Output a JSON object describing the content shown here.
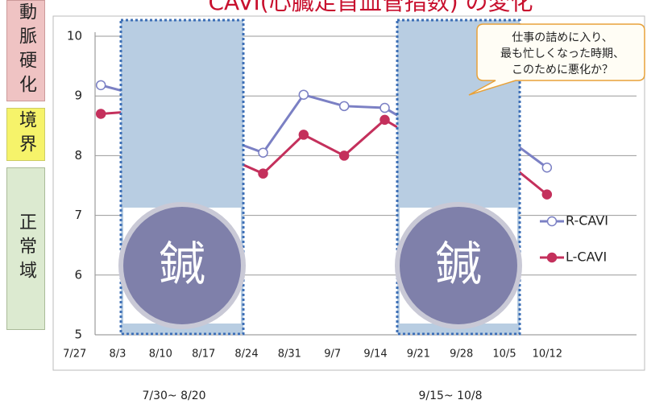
{
  "chart_data": {
    "type": "line",
    "title": "CAVI(心臓足首血管指数) の変化",
    "zones": [
      "動脈硬化",
      "境界",
      "正常域"
    ],
    "categories": [
      "7/27",
      "8/3",
      "8/10",
      "8/17",
      "8/24",
      "8/31",
      "9/7",
      "9/14",
      "9/21",
      "9/28",
      "10/5",
      "10/12"
    ],
    "series": [
      {
        "name": "R-CAVI",
        "color": "#7b80c4",
        "values": [
          9.18,
          9.0,
          8.7,
          8.3,
          8.05,
          9.02,
          8.83,
          8.8,
          8.4,
          8.6,
          8.3,
          7.8
        ]
      },
      {
        "name": "L-CAVI",
        "color": "#c4305c",
        "values": [
          8.7,
          8.75,
          8.4,
          8.0,
          7.7,
          8.35,
          8.0,
          8.6,
          8.2,
          8.3,
          7.9,
          7.35
        ]
      }
    ],
    "ylim": [
      5,
      10
    ],
    "yticks": [
      5,
      6,
      7,
      8,
      9,
      10
    ],
    "grid": true,
    "legend": "right",
    "overlay_label": "鍼",
    "periods": [
      "7/30~ 8/20",
      "9/15~ 10/8"
    ],
    "callout": [
      "仕事の詰めに入り、",
      "最も忙しくなった時期、",
      "このために悪化か？"
    ]
  }
}
